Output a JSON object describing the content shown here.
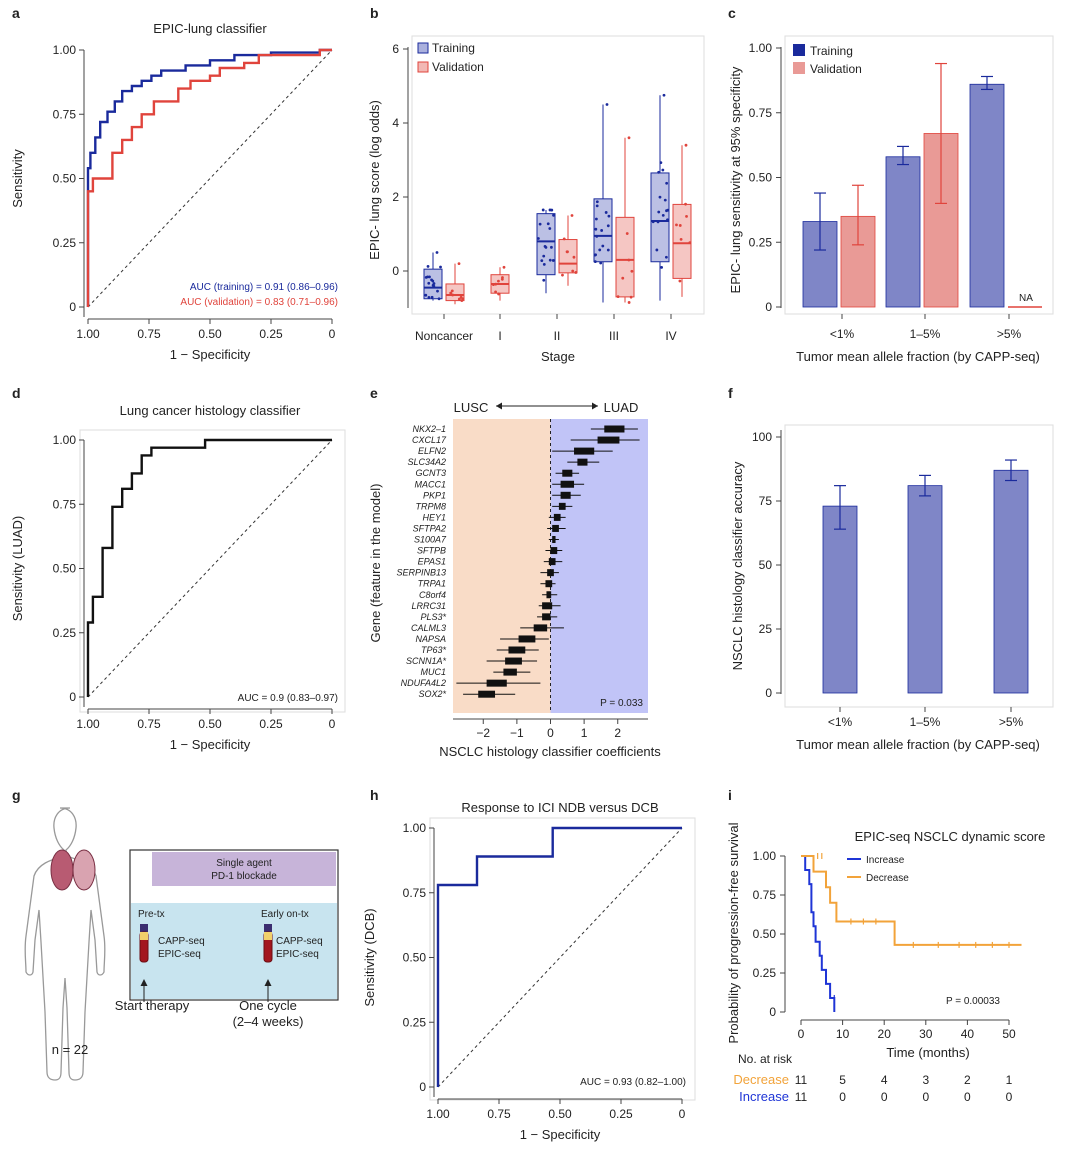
{
  "panels": [
    "a",
    "b",
    "c",
    "d",
    "e",
    "f",
    "g",
    "h",
    "i"
  ],
  "colors": {
    "training": "#1a2a9c",
    "validation": "#e0443c",
    "bar_train": "#7f86c7",
    "bar_val": "#e99a96",
    "increase": "#1f35d6",
    "decrease": "#f2a33a",
    "lusc_bg": "#f9dcc7",
    "luad_bg": "#c1c4f7",
    "g_box": "#c8e4ef",
    "g_band": "#c7b4d9"
  },
  "chart_data": [
    {
      "panel": "a",
      "type": "line",
      "title": "EPIC-lung classifier",
      "xlabel": "1 − Specificity",
      "ylabel": "Sensitivity",
      "x_ticks": [
        "1.00",
        "0.75",
        "0.50",
        "0.25",
        "0"
      ],
      "y_ticks": [
        "0",
        "0.25",
        "0.50",
        "0.75",
        "1.00"
      ],
      "xlim": [
        1,
        0
      ],
      "ylim": [
        0,
        1
      ],
      "series": [
        {
          "name": "AUC (training) = 0.91 (0.86–0.96)",
          "color": "#1a2a9c",
          "x": [
            1,
            1,
            0.99,
            0.99,
            0.97,
            0.97,
            0.95,
            0.95,
            0.92,
            0.92,
            0.89,
            0.89,
            0.86,
            0.86,
            0.82,
            0.82,
            0.78,
            0.78,
            0.74,
            0.74,
            0.7,
            0.7,
            0.6,
            0.6,
            0.5,
            0.5,
            0.4,
            0.4,
            0.25,
            0.25,
            0.05,
            0.05,
            0
          ],
          "y": [
            0,
            0.54,
            0.54,
            0.6,
            0.6,
            0.66,
            0.66,
            0.72,
            0.72,
            0.76,
            0.76,
            0.8,
            0.8,
            0.84,
            0.84,
            0.86,
            0.86,
            0.88,
            0.88,
            0.9,
            0.9,
            0.92,
            0.92,
            0.94,
            0.94,
            0.96,
            0.96,
            0.98,
            0.98,
            0.99,
            0.99,
            1,
            1
          ]
        },
        {
          "name": "AUC (validation) = 0.83 (0.71–0.96)",
          "color": "#e0443c",
          "x": [
            1,
            1,
            0.98,
            0.98,
            0.9,
            0.9,
            0.86,
            0.86,
            0.82,
            0.82,
            0.78,
            0.78,
            0.73,
            0.73,
            0.63,
            0.63,
            0.58,
            0.58,
            0.5,
            0.5,
            0.46,
            0.46,
            0.36,
            0.36,
            0.3,
            0.3,
            0.05,
            0.05,
            0
          ],
          "y": [
            0,
            0.45,
            0.45,
            0.5,
            0.5,
            0.6,
            0.6,
            0.65,
            0.65,
            0.7,
            0.7,
            0.75,
            0.75,
            0.8,
            0.8,
            0.85,
            0.85,
            0.88,
            0.88,
            0.9,
            0.9,
            0.93,
            0.93,
            0.95,
            0.95,
            0.98,
            0.98,
            1,
            1
          ]
        }
      ],
      "legend": [
        "AUC (training) = 0.91 (0.86–0.96)",
        "AUC (validation) = 0.83 (0.71–0.96)"
      ]
    },
    {
      "panel": "b",
      "type": "box",
      "title": "",
      "xlabel": "Stage",
      "ylabel": "EPIC- lung score (log odds)",
      "categories": [
        "Noncancer",
        "I",
        "II",
        "III",
        "IV"
      ],
      "y_ticks": [
        "0",
        "2",
        "4",
        "6"
      ],
      "ylim": [
        -1,
        6.2
      ],
      "legend": [
        "Training",
        "Validation"
      ],
      "boxes": [
        {
          "cat": "Noncancer",
          "series": "Training",
          "min": -0.8,
          "q1": -0.75,
          "median": -0.45,
          "q3": 0.05,
          "max": 0.5
        },
        {
          "cat": "Noncancer",
          "series": "Validation",
          "min": -0.9,
          "q1": -0.8,
          "median": -0.65,
          "q3": -0.35,
          "max": 0.2
        },
        {
          "cat": "I",
          "series": "Validation",
          "min": -0.8,
          "q1": -0.6,
          "median": -0.35,
          "q3": -0.1,
          "max": 0.1
        },
        {
          "cat": "II",
          "series": "Training",
          "min": -0.6,
          "q1": -0.1,
          "median": 0.8,
          "q3": 1.55,
          "max": 1.65
        },
        {
          "cat": "II",
          "series": "Validation",
          "min": -0.4,
          "q1": -0.05,
          "median": 0.2,
          "q3": 0.85,
          "max": 1.5
        },
        {
          "cat": "III",
          "series": "Training",
          "min": -0.85,
          "q1": 0.25,
          "median": 0.95,
          "q3": 1.95,
          "max": 4.5
        },
        {
          "cat": "III",
          "series": "Validation",
          "min": -0.85,
          "q1": -0.7,
          "median": 0.3,
          "q3": 1.45,
          "max": 3.6
        },
        {
          "cat": "IV",
          "series": "Training",
          "min": -0.8,
          "q1": 0.25,
          "median": 1.35,
          "q3": 2.65,
          "max": 4.75
        },
        {
          "cat": "IV",
          "series": "Validation",
          "min": -0.7,
          "q1": -0.2,
          "median": 0.75,
          "q3": 1.8,
          "max": 3.4
        }
      ]
    },
    {
      "panel": "c",
      "type": "bar",
      "title": "",
      "xlabel": "Tumor mean allele fraction (by CAPP-seq)",
      "ylabel": "EPIC- lung sensitivity at 95% specificity",
      "categories": [
        "<1%",
        "1–5%",
        ">5%"
      ],
      "ylim": [
        0,
        1
      ],
      "y_ticks": [
        "0",
        "0.25",
        "0.50",
        "0.75",
        "1.00"
      ],
      "series": [
        {
          "name": "Training",
          "values": [
            0.33,
            0.58,
            0.86
          ],
          "err_low": [
            0.22,
            0.55,
            0.84
          ],
          "err_high": [
            0.44,
            0.62,
            0.89
          ]
        },
        {
          "name": "Validation",
          "values": [
            0.35,
            0.67,
            0
          ],
          "err_low": [
            0.24,
            0.4,
            null
          ],
          "err_high": [
            0.47,
            0.94,
            null
          ]
        }
      ],
      "na_label": "NA"
    },
    {
      "panel": "d",
      "type": "line",
      "title": "Lung cancer histology classifier",
      "xlabel": "1 − Specificity",
      "ylabel": "Sensitivity (LUAD)",
      "x_ticks": [
        "1.00",
        "0.75",
        "0.50",
        "0.25",
        "0"
      ],
      "y_ticks": [
        "0",
        "0.25",
        "0.50",
        "0.75",
        "1.00"
      ],
      "xlim": [
        1,
        0
      ],
      "ylim": [
        0,
        1
      ],
      "series": [
        {
          "name": "",
          "color": "#111111",
          "x": [
            1,
            1,
            0.98,
            0.98,
            0.94,
            0.94,
            0.9,
            0.9,
            0.86,
            0.86,
            0.82,
            0.82,
            0.78,
            0.78,
            0.74,
            0.74,
            0.7,
            0.7,
            0.52,
            0.52,
            0
          ],
          "y": [
            0,
            0.29,
            0.29,
            0.39,
            0.39,
            0.58,
            0.58,
            0.74,
            0.74,
            0.81,
            0.81,
            0.87,
            0.87,
            0.94,
            0.94,
            0.97,
            0.97,
            0.97,
            0.97,
            1,
            1
          ]
        }
      ],
      "annotation": "AUC = 0.9 (0.83–0.97)"
    },
    {
      "panel": "e",
      "type": "forest",
      "title": "",
      "xlabel": "NSCLC histology classifier coefficients",
      "ylabel": "Gene (feature in the model)",
      "x_ticks": [
        "−2",
        "−1",
        "0",
        "1",
        "2"
      ],
      "xlim": [
        -2.9,
        2.9
      ],
      "left_label": "LUSC",
      "right_label": "LUAD",
      "p_value": "P = 0.033",
      "genes": [
        "NKX2–1",
        "CXCL17",
        "ELFN2",
        "SLC34A2",
        "GCNT3",
        "MACC1",
        "PKP1",
        "TRPM8",
        "HEY1",
        "SFTPA2",
        "S100A7",
        "SFTPB",
        "EPAS1",
        "SERPINB13",
        "TRPA1",
        "C8orf4",
        "LRRC31",
        "PLS3*",
        "CALML3",
        "NAPSA",
        "TP63*",
        "SCNN1A*",
        "MUC1",
        "NDUFA4L2",
        "SOX2*"
      ],
      "median": [
        1.9,
        1.75,
        1.0,
        0.95,
        0.5,
        0.5,
        0.45,
        0.35,
        0.2,
        0.15,
        0.1,
        0.1,
        0.05,
        0.0,
        -0.05,
        -0.05,
        -0.1,
        -0.1,
        -0.3,
        -0.7,
        -1.0,
        -1.1,
        -1.2,
        -1.6,
        -1.9
      ],
      "q1": [
        1.6,
        1.4,
        0.7,
        0.8,
        0.35,
        0.3,
        0.3,
        0.25,
        0.1,
        0.05,
        0.05,
        0.0,
        -0.05,
        -0.1,
        -0.15,
        -0.12,
        -0.25,
        -0.25,
        -0.5,
        -0.95,
        -1.25,
        -1.35,
        -1.4,
        -1.9,
        -2.15
      ],
      "q3": [
        2.2,
        2.05,
        1.3,
        1.1,
        0.65,
        0.7,
        0.6,
        0.45,
        0.3,
        0.25,
        0.15,
        0.2,
        0.15,
        0.1,
        0.05,
        0.02,
        0.05,
        0.0,
        -0.1,
        -0.45,
        -0.75,
        -0.85,
        -1.0,
        -1.3,
        -1.65
      ],
      "lo": [
        1.2,
        0.6,
        0.05,
        0.5,
        0.15,
        0.05,
        0.05,
        0.05,
        -0.05,
        -0.1,
        -0.05,
        -0.15,
        -0.2,
        -0.3,
        -0.3,
        -0.25,
        -0.35,
        -0.4,
        -0.9,
        -1.5,
        -1.6,
        -1.9,
        -1.7,
        -2.8,
        -2.6
      ],
      "hi": [
        2.6,
        2.65,
        1.85,
        1.45,
        0.85,
        1.0,
        0.9,
        0.65,
        0.45,
        0.45,
        0.25,
        0.35,
        0.35,
        0.25,
        0.15,
        0.2,
        0.3,
        0.2,
        0.4,
        -0.05,
        -0.35,
        -0.4,
        -0.6,
        -0.3,
        -1.05
      ]
    },
    {
      "panel": "f",
      "type": "bar",
      "title": "",
      "xlabel": "Tumor mean allele fraction (by CAPP-seq)",
      "ylabel": "NSCLC histology classifier accuracy",
      "categories": [
        "<1%",
        "1–5%",
        ">5%"
      ],
      "ylim": [
        0,
        100
      ],
      "y_ticks": [
        "0",
        "25",
        "50",
        "75",
        "100"
      ],
      "values": [
        73,
        81,
        87
      ],
      "err_low": [
        64,
        77,
        83
      ],
      "err_high": [
        81,
        85,
        91
      ]
    },
    {
      "panel": "h",
      "type": "line",
      "title": "Response to ICI NDB versus DCB",
      "xlabel": "1 − Specificity",
      "ylabel": "Sensitivity (DCB)",
      "x_ticks": [
        "1.00",
        "0.75",
        "0.50",
        "0.25",
        "0"
      ],
      "y_ticks": [
        "0",
        "0.25",
        "0.50",
        "0.75",
        "1.00"
      ],
      "xlim": [
        1,
        0
      ],
      "ylim": [
        0,
        1
      ],
      "series": [
        {
          "name": "",
          "color": "#1a2a9c",
          "x": [
            1,
            1,
            0.84,
            0.84,
            0.53,
            0.53,
            0
          ],
          "y": [
            0,
            0.78,
            0.78,
            0.89,
            0.89,
            1,
            1
          ]
        }
      ],
      "annotation": "AUC = 0.93 (0.82–1.00)"
    },
    {
      "panel": "i",
      "type": "line",
      "title": "EPIC-seq NSCLC dynamic score",
      "xlabel": "Time (months)",
      "ylabel": "Probability of progression-free survival",
      "x_ticks": [
        "0",
        "10",
        "20",
        "30",
        "40",
        "50"
      ],
      "y_ticks": [
        "0",
        "0.25",
        "0.50",
        "0.75",
        "1.00"
      ],
      "xlim": [
        -2,
        53
      ],
      "ylim": [
        0,
        1
      ],
      "series": [
        {
          "name": "Increase",
          "color": "#1f35d6",
          "x": [
            0,
            1,
            1,
            2,
            2,
            2.5,
            2.5,
            3,
            3,
            3.5,
            3.5,
            4.5,
            4.5,
            5,
            5,
            6,
            6,
            7,
            7,
            8,
            8
          ],
          "y": [
            1,
            1,
            0.91,
            0.91,
            0.82,
            0.82,
            0.64,
            0.64,
            0.55,
            0.55,
            0.45,
            0.45,
            0.36,
            0.36,
            0.27,
            0.27,
            0.18,
            0.18,
            0.09,
            0.09,
            0
          ]
        },
        {
          "name": "Decrease",
          "color": "#f2a33a",
          "x": [
            0,
            3,
            3,
            6,
            6,
            7,
            7,
            8.5,
            8.5,
            22.5,
            22.5,
            53
          ],
          "y": [
            1,
            1,
            0.9,
            0.9,
            0.8,
            0.8,
            0.7,
            0.7,
            0.58,
            0.58,
            0.43,
            0.43
          ]
        }
      ],
      "censor": {
        "Increase": {
          "x": [
            8
          ],
          "y": [
            0.09
          ]
        },
        "Decrease": {
          "x": [
            4,
            5,
            12,
            15,
            18,
            27,
            33,
            38,
            42,
            46,
            50
          ],
          "y": [
            1,
            1,
            0.58,
            0.58,
            0.58,
            0.43,
            0.43,
            0.43,
            0.43,
            0.43,
            0.43
          ]
        }
      },
      "p_value": "P = 0.00033",
      "risk_table": {
        "title": "No. at risk",
        "rows": [
          {
            "label": "Decrease",
            "values": [
              "11",
              "5",
              "4",
              "3",
              "2",
              "1"
            ]
          },
          {
            "label": "Increase",
            "values": [
              "11",
              "0",
              "0",
              "0",
              "0",
              "0"
            ]
          }
        ]
      }
    }
  ],
  "schematic_g": {
    "band_text": [
      "Single agent",
      "PD-1 blockade"
    ],
    "pre_label": "Pre-tx",
    "early_label": "Early on-tx",
    "assay1": [
      "CAPP-seq",
      "EPIC-seq"
    ],
    "assay2": [
      "CAPP-seq",
      "EPIC-seq"
    ],
    "start_label": "Start therapy",
    "cycle_label": [
      "One cycle",
      "(2–4 weeks)"
    ],
    "n_label": "n = 22"
  }
}
